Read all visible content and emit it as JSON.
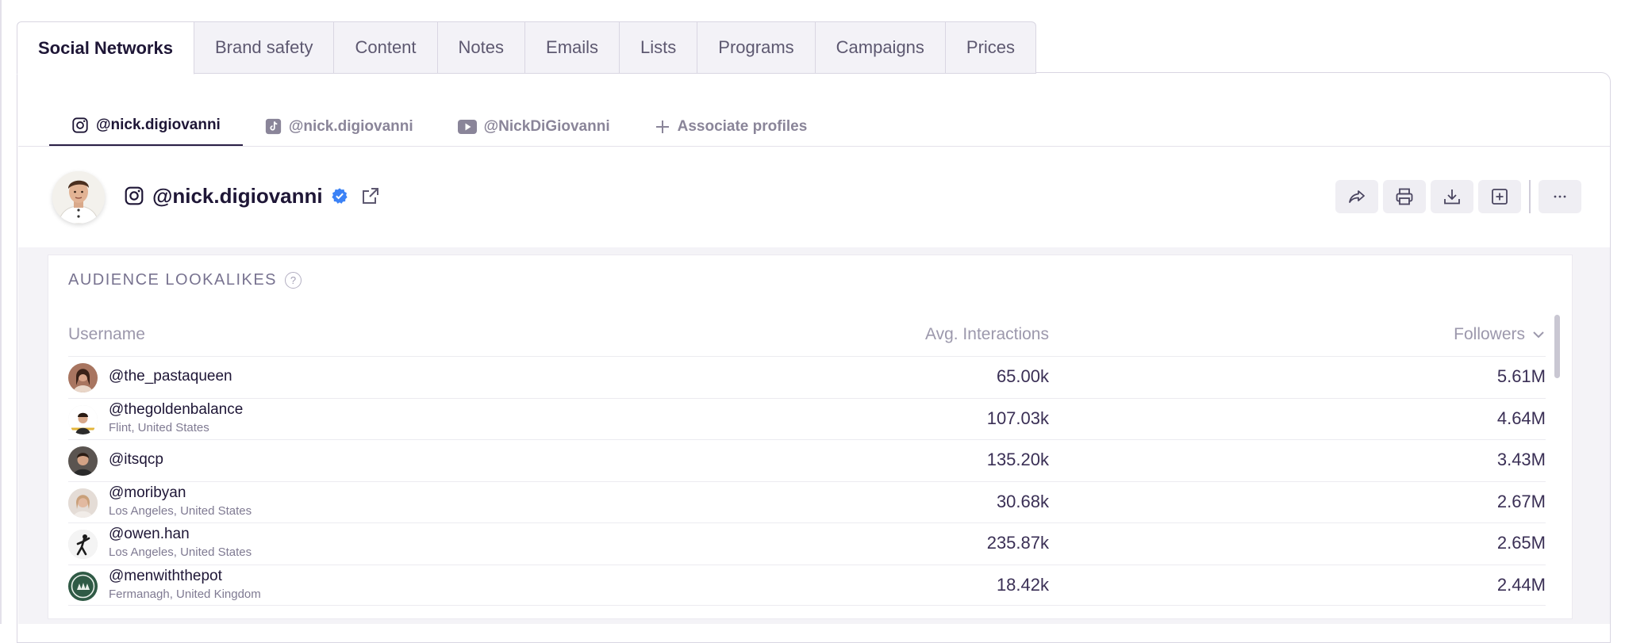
{
  "top_tabs": [
    "Social Networks",
    "Brand safety",
    "Content",
    "Notes",
    "Emails",
    "Lists",
    "Programs",
    "Campaigns",
    "Prices"
  ],
  "profile_tabs": [
    {
      "label": "@nick.digiovanni",
      "icon": "instagram-icon"
    },
    {
      "label": "@nick.digiovanni",
      "icon": "tiktok-icon"
    },
    {
      "label": "@NickDiGiovanni",
      "icon": "youtube-icon"
    },
    {
      "label": "Associate profiles",
      "icon": "plus-icon"
    }
  ],
  "profile": {
    "handle": "@nick.digiovanni",
    "network_icon": "instagram-icon",
    "verified_icon": "verified-badge-icon",
    "external_icon": "external-link-icon"
  },
  "actions": [
    "share-icon",
    "print-icon",
    "download-icon",
    "add-to-list-icon",
    "more-icon"
  ],
  "lookalikes": {
    "title": "AUDIENCE LOOKALIKES",
    "help_symbol": "?",
    "columns": {
      "username": "Username",
      "avg": "Avg. Interactions",
      "followers": "Followers"
    },
    "rows": [
      {
        "username": "@the_pastaqueen",
        "location": "",
        "avg": "65.00k",
        "followers": "5.61M"
      },
      {
        "username": "@thegoldenbalance",
        "location": "Flint, United States",
        "avg": "107.03k",
        "followers": "4.64M"
      },
      {
        "username": "@itsqcp",
        "location": "",
        "avg": "135.20k",
        "followers": "3.43M"
      },
      {
        "username": "@moribyan",
        "location": "Los Angeles, United States",
        "avg": "30.68k",
        "followers": "2.67M"
      },
      {
        "username": "@owen.han",
        "location": "Los Angeles, United States",
        "avg": "235.87k",
        "followers": "2.65M"
      },
      {
        "username": "@menwiththepot",
        "location": "Fermanagh, United Kingdom",
        "avg": "18.42k",
        "followers": "2.44M"
      }
    ]
  },
  "colors": {
    "accent": "#2a1f45",
    "verified": "#3b82f6",
    "muted": "#8a8599"
  }
}
